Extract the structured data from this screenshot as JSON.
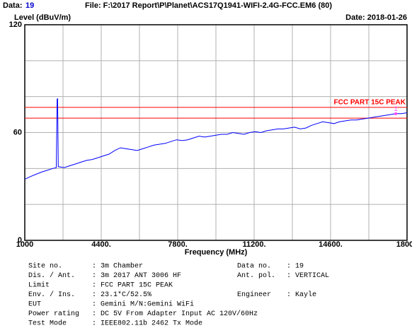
{
  "chart_data": {
    "type": "line",
    "data_label": "Data:",
    "data_number": "19",
    "file": "File: F:\\2017 Report\\P\\Planet\\ACS17Q1941-WIFI-2.4G-FCC.EM6  (80)",
    "ylabel": "Level (dBuV/m)",
    "date": "Date: 2018-01-26",
    "xlabel": "Frequency (MHz)",
    "xlim": [
      1000,
      18000
    ],
    "ylim": [
      0,
      120
    ],
    "xticks": [
      1000,
      {
        "value": 4400,
        "label": "4400."
      },
      {
        "value": 7800,
        "label": "7800."
      },
      {
        "value": 11200,
        "label": "11200."
      },
      {
        "value": 14600,
        "label": "14600."
      },
      18000
    ],
    "yticks": [
      0,
      60,
      120
    ],
    "xgrid": [
      1000,
      2700,
      4400,
      6100,
      7800,
      9500,
      11200,
      12900,
      14600,
      16300,
      18000
    ],
    "ygrid": [
      0,
      20,
      40,
      60,
      80,
      100,
      120
    ],
    "limit_label": "FCC PART 15C PEAK",
    "limit_color": "#ff0000",
    "limit_lines": [
      74,
      68
    ],
    "marker": {
      "label": "1",
      "x": 17500,
      "y": 70.5,
      "color": "#ff44ff"
    },
    "series": [
      {
        "color": "#0000ff",
        "x": [
          1000,
          1250,
          1500,
          1750,
          2000,
          2250,
          2400,
          2440,
          2462,
          2490,
          2750,
          3000,
          3250,
          3500,
          3750,
          4000,
          4250,
          4500,
          4750,
          5000,
          5250,
          5500,
          5750,
          6000,
          6250,
          6500,
          6750,
          7000,
          7250,
          7500,
          7750,
          8000,
          8250,
          8500,
          8750,
          9000,
          9250,
          9500,
          9750,
          10000,
          10250,
          10500,
          10750,
          11000,
          11250,
          11500,
          11750,
          12000,
          12250,
          12500,
          12750,
          13000,
          13250,
          13500,
          13750,
          14000,
          14250,
          14500,
          14750,
          15000,
          15250,
          15500,
          15750,
          16000,
          16250,
          16500,
          16750,
          17000,
          17250,
          17500,
          17750,
          18000
        ],
        "values": [
          34,
          35.5,
          36.8,
          38,
          39,
          40,
          40.5,
          78.5,
          79,
          41,
          40.5,
          41.5,
          42.5,
          43.5,
          44.5,
          45,
          46,
          47,
          48,
          50,
          51.5,
          51,
          50.5,
          50,
          51,
          52,
          53,
          53.5,
          54,
          55,
          56,
          55.5,
          56,
          57,
          58,
          57.5,
          58,
          58.5,
          59,
          59,
          60,
          59.5,
          59,
          60,
          60.5,
          60,
          61,
          61.5,
          62,
          62,
          62.5,
          63,
          62,
          62.5,
          64,
          65,
          66,
          65.5,
          65,
          66,
          66.5,
          67,
          67,
          67.5,
          68,
          68.5,
          69,
          69.5,
          70,
          70.5,
          70.5,
          71
        ]
      }
    ]
  },
  "info": {
    "rows": [
      [
        [
          "Site no.",
          ": 3m Chamber"
        ],
        [
          "Data no.",
          ": 19"
        ]
      ],
      [
        [
          "Dis. / Ant.",
          ": 3m   2017 ANT 3006 HF"
        ],
        [
          "Ant. pol.",
          ": VERTICAL"
        ]
      ],
      [
        [
          "Limit",
          ": FCC PART 15C PEAK"
        ]
      ],
      [
        [
          "Env. / Ins.",
          ": 23.1*C/52.5%"
        ],
        [
          "Engineer",
          ": Kayle"
        ]
      ],
      [
        [
          "EUT",
          ": Gemini  M/N:Gemini WiFi"
        ]
      ],
      [
        [
          "Power rating",
          ": DC 5V From Adapter Input AC 120V/60Hz"
        ]
      ],
      [
        [
          "Test Mode",
          ": IEEE802.11b 2462 Tx Mode"
        ]
      ]
    ]
  }
}
